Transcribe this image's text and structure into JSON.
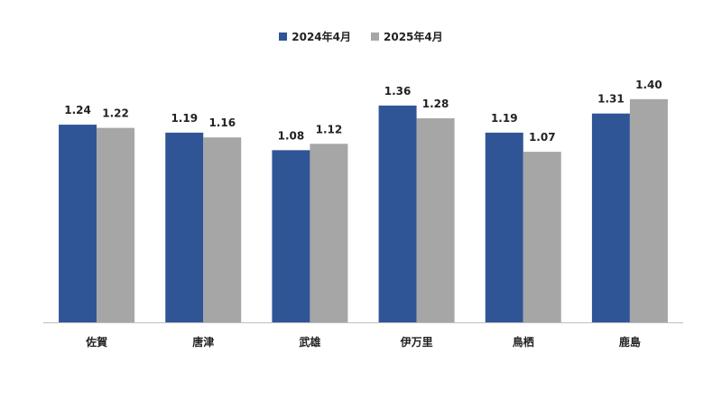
{
  "chart_data": {
    "type": "bar",
    "categories": [
      "佐賀",
      "唐津",
      "武雄",
      "伊万里",
      "鳥栖",
      "鹿島"
    ],
    "series": [
      {
        "name": "2024年4月",
        "values": [
          1.24,
          1.19,
          1.08,
          1.36,
          1.19,
          1.31
        ],
        "color": "#2F5597",
        "labels": [
          "1.24",
          "1.19",
          "1.08",
          "1.36",
          "1.19",
          "1.31"
        ]
      },
      {
        "name": "2025年4月",
        "values": [
          1.22,
          1.16,
          1.12,
          1.28,
          1.07,
          1.4
        ],
        "color": "#A6A6A6",
        "labels": [
          "1.22",
          "1.16",
          "1.12",
          "1.28",
          "1.07",
          "1.40"
        ]
      }
    ],
    "ylim": [
      0,
      1.45
    ],
    "grid": false,
    "legend": "top-center"
  }
}
